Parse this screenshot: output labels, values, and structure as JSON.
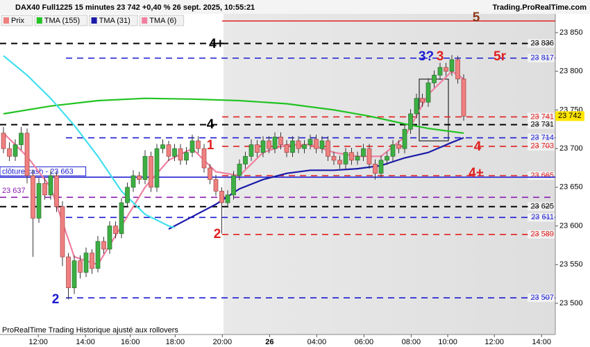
{
  "header": {
    "title": "DAX40 Full1225 15 minutes 23 742 +0,40 % 26 sept. 2025, 10:55:21",
    "brand": "Trading.ProRealTime.com",
    "footer": "ProRealTime Trading  Historique ajusté aux rollovers"
  },
  "chart_data": {
    "type": "candlestick",
    "name": "Prix",
    "up_color": "#3cb043",
    "down_color": "#f08080",
    "candles": [
      [
        23720,
        23728,
        23694,
        23700
      ],
      [
        23700,
        23708,
        23684,
        23690
      ],
      [
        23690,
        23712,
        23684,
        23705
      ],
      [
        23705,
        23728,
        23698,
        23720
      ],
      [
        23720,
        23726,
        23655,
        23665
      ],
      [
        23665,
        23672,
        23560,
        23610
      ],
      [
        23610,
        23662,
        23604,
        23655
      ],
      [
        23655,
        23662,
        23634,
        23640
      ],
      [
        23640,
        23672,
        23634,
        23665
      ],
      [
        23665,
        23670,
        23618,
        23625
      ],
      [
        23625,
        23632,
        23548,
        23560
      ],
      [
        23560,
        23565,
        23505,
        23520
      ],
      [
        23520,
        23562,
        23512,
        23555
      ],
      [
        23555,
        23562,
        23532,
        23540
      ],
      [
        23540,
        23572,
        23534,
        23565
      ],
      [
        23565,
        23570,
        23538,
        23545
      ],
      [
        23545,
        23587,
        23540,
        23580
      ],
      [
        23580,
        23586,
        23564,
        23570
      ],
      [
        23570,
        23606,
        23564,
        23600
      ],
      [
        23600,
        23606,
        23584,
        23590
      ],
      [
        23590,
        23636,
        23584,
        23630
      ],
      [
        23630,
        23656,
        23624,
        23650
      ],
      [
        23650,
        23672,
        23644,
        23665
      ],
      [
        23665,
        23670,
        23654,
        23660
      ],
      [
        23660,
        23698,
        23654,
        23690
      ],
      [
        23690,
        23696,
        23644,
        23650
      ],
      [
        23650,
        23706,
        23644,
        23700
      ],
      [
        23700,
        23712,
        23694,
        23705
      ],
      [
        23705,
        23710,
        23684,
        23690
      ],
      [
        23690,
        23706,
        23684,
        23700
      ],
      [
        23700,
        23706,
        23679,
        23685
      ],
      [
        23685,
        23702,
        23679,
        23695
      ],
      [
        23695,
        23718,
        23689,
        23710
      ],
      [
        23710,
        23716,
        23694,
        23700
      ],
      [
        23700,
        23706,
        23669,
        23675
      ],
      [
        23675,
        23680,
        23654,
        23660
      ],
      [
        23660,
        23666,
        23639,
        23645
      ],
      [
        23645,
        23650,
        23590,
        23630
      ],
      [
        23630,
        23646,
        23624,
        23640
      ],
      [
        23640,
        23671,
        23634,
        23665
      ],
      [
        23665,
        23686,
        23659,
        23680
      ],
      [
        23680,
        23696,
        23674,
        23690
      ],
      [
        23690,
        23712,
        23684,
        23705
      ],
      [
        23705,
        23711,
        23689,
        23695
      ],
      [
        23695,
        23716,
        23689,
        23710
      ],
      [
        23710,
        23716,
        23694,
        23700
      ],
      [
        23700,
        23721,
        23694,
        23715
      ],
      [
        23715,
        23721,
        23699,
        23705
      ],
      [
        23705,
        23711,
        23689,
        23695
      ],
      [
        23695,
        23716,
        23689,
        23710
      ],
      [
        23710,
        23716,
        23694,
        23700
      ],
      [
        23700,
        23711,
        23694,
        23705
      ],
      [
        23705,
        23718,
        23699,
        23712
      ],
      [
        23712,
        23718,
        23694,
        23700
      ],
      [
        23700,
        23716,
        23694,
        23710
      ],
      [
        23710,
        23716,
        23684,
        23690
      ],
      [
        23690,
        23696,
        23679,
        23685
      ],
      [
        23685,
        23691,
        23674,
        23680
      ],
      [
        23680,
        23701,
        23674,
        23695
      ],
      [
        23695,
        23701,
        23679,
        23685
      ],
      [
        23685,
        23696,
        23679,
        23690
      ],
      [
        23690,
        23706,
        23684,
        23700
      ],
      [
        23700,
        23706,
        23674,
        23680
      ],
      [
        23680,
        23686,
        23660,
        23668
      ],
      [
        23668,
        23691,
        23662,
        23685
      ],
      [
        23685,
        23696,
        23679,
        23690
      ],
      [
        23690,
        23711,
        23684,
        23705
      ],
      [
        23705,
        23711,
        23694,
        23700
      ],
      [
        23700,
        23731,
        23694,
        23725
      ],
      [
        23725,
        23751,
        23719,
        23745
      ],
      [
        23745,
        23771,
        23739,
        23765
      ],
      [
        23765,
        23771,
        23754,
        23760
      ],
      [
        23760,
        23791,
        23754,
        23785
      ],
      [
        23785,
        23801,
        23779,
        23795
      ],
      [
        23795,
        23811,
        23789,
        23805
      ],
      [
        23805,
        23811,
        23794,
        23800
      ],
      [
        23800,
        23821,
        23794,
        23815
      ],
      [
        23815,
        23820,
        23784,
        23790
      ],
      [
        23790,
        23796,
        23736,
        23742
      ]
    ],
    "series": [
      {
        "name": "TMA (155)",
        "color": "#22c322",
        "x": [
          0,
          8,
          16,
          24,
          32,
          40,
          48,
          56,
          62,
          68,
          72,
          78
        ],
        "values": [
          23745,
          23755,
          23762,
          23765,
          23764,
          23762,
          23758,
          23750,
          23742,
          23732,
          23726,
          23720
        ]
      },
      {
        "name": "TMA (31)",
        "color": "#1a1aa8",
        "x": [
          28,
          32,
          36,
          40,
          44,
          48,
          52,
          56,
          60,
          64,
          68,
          72,
          76,
          78
        ],
        "values": [
          23596,
          23612,
          23628,
          23648,
          23660,
          23668,
          23672,
          23672,
          23674,
          23678,
          23688,
          23695,
          23708,
          23714
        ]
      },
      {
        "name": "TMA (6)",
        "color": "#f080a0",
        "x": [
          0,
          4,
          8,
          12,
          16,
          20,
          24,
          28,
          32,
          36,
          40,
          44,
          48,
          52,
          56,
          60,
          64,
          68,
          72,
          76,
          78
        ],
        "values": [
          23720,
          23690,
          23650,
          23560,
          23550,
          23600,
          23650,
          23685,
          23700,
          23670,
          23665,
          23695,
          23705,
          23705,
          23695,
          23690,
          23690,
          23715,
          23770,
          23800,
          23790
        ]
      },
      {
        "color": "#40e0f0",
        "x": [
          0,
          4,
          8,
          12,
          16,
          20,
          24,
          28,
          29
        ],
        "values": [
          23820,
          23795,
          23765,
          23730,
          23690,
          23645,
          23615,
          23600,
          23598
        ]
      }
    ],
    "levels": [
      {
        "value": 23865,
        "color": "#e02020",
        "dash": false
      },
      {
        "value": 23836,
        "label": "23 836",
        "color": "#000000",
        "dash": true
      },
      {
        "value": 23817,
        "label": "23 817",
        "color": "#1a1ad0",
        "dash": true
      },
      {
        "value": 23741,
        "label": "23 741",
        "color": "#e02020",
        "dash": true
      },
      {
        "value": 23731,
        "label": "23 731",
        "color": "#000000",
        "dash": true
      },
      {
        "value": 23714,
        "label": "23 714",
        "color": "#1a1ad0",
        "dash": true
      },
      {
        "value": 23703,
        "label": "23 703",
        "color": "#e02020",
        "dash": true
      },
      {
        "value": 23665,
        "label": "23 665",
        "color": "#e02020",
        "dash": true
      },
      {
        "value": 23663,
        "left_label": "clôture cash - 23 663",
        "color": "#1a1ad0",
        "dash": false
      },
      {
        "value": 23637,
        "left_label": "23 637",
        "color": "#8a1ab0",
        "dash": true
      },
      {
        "value": 23625,
        "label": "23 625",
        "color": "#000000",
        "dash": true
      },
      {
        "value": 23611,
        "label": "23 611",
        "color": "#1a1ad0",
        "dash": true
      },
      {
        "value": 23589,
        "label": "23 589",
        "color": "#e02020",
        "dash": true
      },
      {
        "value": 23507,
        "label": "23 507",
        "color": "#1a1ad0",
        "dash": true
      }
    ],
    "annotations": [
      {
        "text": "5",
        "color": "#8b3a1a"
      },
      {
        "text": "4+",
        "color": "#000000"
      },
      {
        "text": "4",
        "color": "#000000"
      },
      {
        "text": "3?",
        "color": "#1a1ad0"
      },
      {
        "text": "3",
        "color": "#e02020"
      },
      {
        "text": "5r",
        "color": "#e02020"
      },
      {
        "text": "1",
        "color": "#e02020"
      },
      {
        "text": "2",
        "color": "#e02020"
      },
      {
        "text": "2",
        "color": "#1a1ad0"
      },
      {
        "text": "4",
        "color": "#e02020"
      },
      {
        "text": "4+",
        "color": "#e02020"
      }
    ],
    "price_tag": {
      "value": 23742,
      "label": "23 742"
    },
    "ylim": [
      23461.4,
      23874.2
    ],
    "yticks": [
      {
        "value": 23500,
        "label": "23 500"
      },
      {
        "value": 23550,
        "label": "23 550"
      },
      {
        "value": 23600,
        "label": "23 600"
      },
      {
        "value": 23650,
        "label": "23 650"
      },
      {
        "value": 23700,
        "label": "23 700"
      },
      {
        "value": 23750,
        "label": "23 750"
      },
      {
        "value": 23800,
        "label": "23 800"
      },
      {
        "value": 23850,
        "label": "23 850"
      }
    ],
    "xlim": [
      -0.59,
      93.53
    ],
    "xticks": [
      {
        "value": 5.9,
        "label": "12:00"
      },
      {
        "value": 13.9,
        "label": "14:00"
      },
      {
        "value": 21.5,
        "label": "16:00"
      },
      {
        "value": 29.1,
        "label": "18:00"
      },
      {
        "value": 37.1,
        "label": "20:00"
      },
      {
        "value": 45.1,
        "label": "26"
      },
      {
        "value": 53.1,
        "label": "04:00"
      },
      {
        "value": 61.1,
        "label": "06:00"
      },
      {
        "value": 69.1,
        "label": "08:00"
      },
      {
        "value": 75.3,
        "label": "10:00"
      },
      {
        "value": 83.2,
        "label": "12:00"
      },
      {
        "value": 91.2,
        "label": "14:00"
      }
    ]
  }
}
